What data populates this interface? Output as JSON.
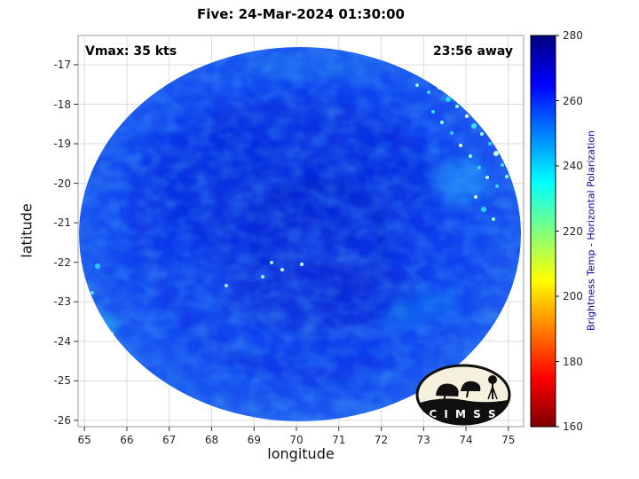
{
  "header": {
    "title": "Five: 24-Mar-2024 01:30:00"
  },
  "plot": {
    "vmax_label": "Vmax: 35 kts",
    "away_label": "23:56 away"
  },
  "logo": {
    "name": "CIMSS",
    "letters": "C I M S S"
  },
  "chart_data": {
    "type": "heatmap",
    "title": "Five: 24-Mar-2024 01:30:00",
    "storm": {
      "name": "Five",
      "datetime": "24-Mar-2024 01:30:00",
      "vmax_kts": 35,
      "obs_time_offset": "23:56 away",
      "center_lon": 70.2,
      "center_lat": -21.3,
      "swath_radius_deg": 5.2
    },
    "xlabel": "longitude",
    "ylabel": "latitude",
    "x_ticks": [
      65,
      66,
      67,
      68,
      69,
      70,
      71,
      72,
      73,
      74,
      75
    ],
    "y_ticks": [
      -17,
      -18,
      -19,
      -20,
      -21,
      -22,
      -23,
      -24,
      -25,
      -26
    ],
    "xlim": [
      64.85,
      75.36
    ],
    "ylim": [
      -26.16,
      -16.26
    ],
    "grid": true,
    "legend_position": "none",
    "colorbar": {
      "label": "Brightness Temp - Horizontal Polarization",
      "ticks": [
        160,
        180,
        200,
        220,
        240,
        260,
        280
      ],
      "range": [
        160,
        280
      ],
      "colormap": "reversed jet (280 K = dark navy, 260 K = blue, 240 K = cyan, 220 K = green, 200 K = yellow-orange, 180 K = red, 160 K = dark red)"
    },
    "value_summary": "Circular microwave swath dominated by 250-270 K (blue) cloud tops around a cyclonic center near 70.2E, -21.3; scattered 230-245 K (cyan/green) convective cells along the northeastern swath edge and isolated lighter patches on the western and southern periphery"
  }
}
